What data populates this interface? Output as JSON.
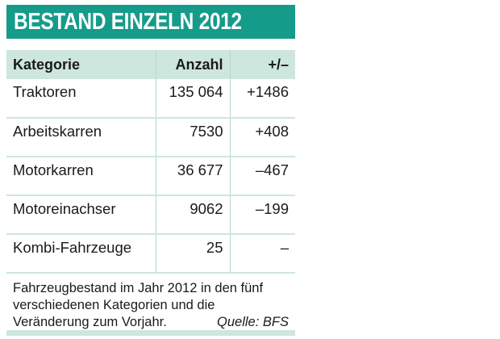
{
  "title": "BESTAND EINZELN 2012",
  "table": {
    "headers": [
      "Kategorie",
      "Anzahl",
      "+/–"
    ]
  },
  "rows": [
    {
      "category": "Traktoren",
      "count": "135 064",
      "change": "+1486"
    },
    {
      "category": "Arbeitskarren",
      "count": "7530",
      "change": "+408"
    },
    {
      "category": "Motorkarren",
      "count": "36 677",
      "change": "–467"
    },
    {
      "category": "Motoreinachser",
      "count": "9062",
      "change": "–199"
    },
    {
      "category": "Kombi-Fahrzeuge",
      "count": "25",
      "change": "–"
    }
  ],
  "note": "Fahrzeugbestand im Jahr 2012 in den fünf verschiedenen Kategorien und die Veränderung zum Vorjahr.",
  "source": "Quelle: BFS",
  "colors": {
    "header_bar": "#159b8a",
    "light_band": "#cde6de"
  },
  "chart_data": {
    "type": "table",
    "title": "BESTAND EINZELN 2012",
    "columns": [
      "Kategorie",
      "Anzahl",
      "+/–"
    ],
    "rows": [
      [
        "Traktoren",
        135064,
        1486
      ],
      [
        "Arbeitskarren",
        7530,
        408
      ],
      [
        "Motorkarren",
        36677,
        -467
      ],
      [
        "Motoreinachser",
        9062,
        -199
      ],
      [
        "Kombi-Fahrzeuge",
        25,
        null
      ]
    ]
  }
}
